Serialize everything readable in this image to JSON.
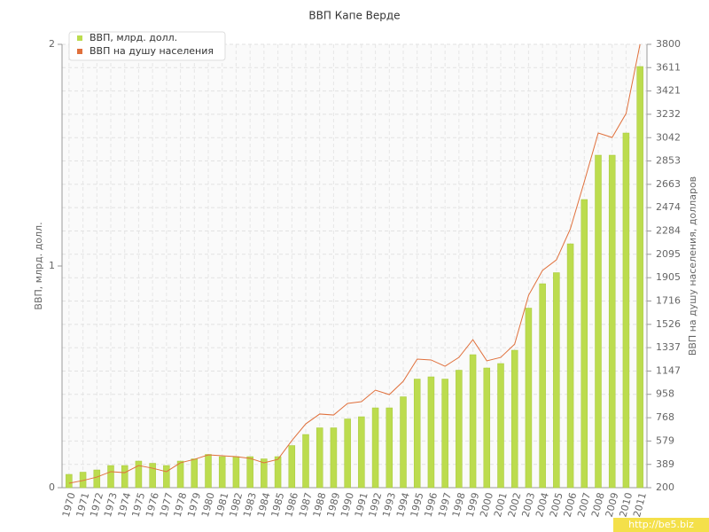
{
  "chart_data": {
    "type": "bar-line",
    "title": "ВВП Капе Верде",
    "y_label": "ВВП, млрд. долл.",
    "y2_label": "ВВП на душу населения, долларов",
    "watermark": "http://be5.biz",
    "categories": [
      "1970",
      "1971",
      "1972",
      "1973",
      "1974",
      "1975",
      "1976",
      "1977",
      "1978",
      "1979",
      "1980",
      "1981",
      "1982",
      "1983",
      "1984",
      "1985",
      "1986",
      "1987",
      "1988",
      "1989",
      "1990",
      "1991",
      "1992",
      "1993",
      "1994",
      "1995",
      "1996",
      "1997",
      "1998",
      "1999",
      "2000",
      "2001",
      "2002",
      "2003",
      "2004",
      "2005",
      "2006",
      "2007",
      "2008",
      "2009",
      "2010",
      "2011"
    ],
    "series": [
      {
        "name": "ВВП, млрд. долл.",
        "color": "#bcdc4e",
        "kind": "bar",
        "values": [
          0.06,
          0.07,
          0.08,
          0.1,
          0.1,
          0.12,
          0.11,
          0.1,
          0.12,
          0.13,
          0.15,
          0.14,
          0.14,
          0.14,
          0.13,
          0.14,
          0.19,
          0.24,
          0.27,
          0.27,
          0.31,
          0.32,
          0.36,
          0.36,
          0.41,
          0.49,
          0.5,
          0.49,
          0.53,
          0.6,
          0.54,
          0.56,
          0.62,
          0.81,
          0.92,
          0.97,
          1.1,
          1.3,
          1.5,
          1.5,
          1.6,
          1.9
        ]
      },
      {
        "name": "ВВП на душу населения",
        "color": "#e0703c",
        "kind": "line",
        "axis": "y2",
        "values": [
          236,
          258,
          286,
          330,
          322,
          380,
          358,
          330,
          402,
          430,
          466,
          459,
          452,
          438,
          402,
          430,
          582,
          718,
          798,
          790,
          884,
          898,
          992,
          956,
          1064,
          1244,
          1237,
          1186,
          1258,
          1402,
          1230,
          1258,
          1366,
          1762,
          1964,
          2050,
          2302,
          2684,
          3080,
          3044,
          3238,
          3800
        ]
      }
    ],
    "ylim": [
      0,
      2
    ],
    "yticks": [
      0,
      1,
      2
    ],
    "y2lim": [
      200,
      3800
    ],
    "y2ticks": [
      200,
      389,
      579,
      768,
      958,
      1147,
      1337,
      1526,
      1716,
      1905,
      2095,
      2284,
      2474,
      2663,
      2853,
      3042,
      3232,
      3421,
      3611,
      3800
    ],
    "grid": true,
    "legend": "top-left"
  }
}
